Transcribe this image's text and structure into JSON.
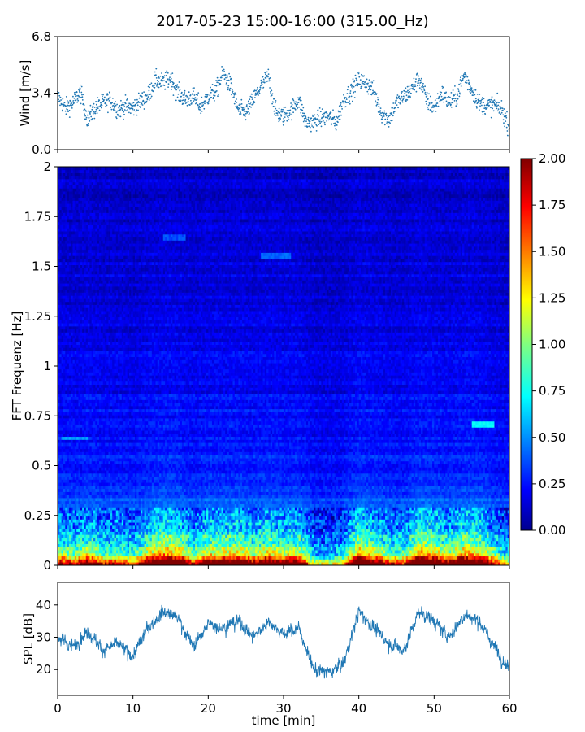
{
  "figure": {
    "title": "2017-05-23 15:00-16:00 (315.00_Hz)",
    "xlabel": "time [min]"
  },
  "chart_data": [
    {
      "type": "scatter",
      "panel": "wind",
      "ylabel": "Wind [m/s]",
      "xlim": [
        0,
        60
      ],
      "ylim": [
        0.0,
        6.8
      ],
      "yticks": [
        "0.0",
        "3.4",
        "6.8"
      ],
      "color": "#1f77b4",
      "trend": {
        "x": [
          0,
          1,
          2,
          3,
          4,
          5,
          6,
          7,
          8,
          9,
          10,
          11,
          12,
          13,
          14,
          15,
          16,
          17,
          18,
          19,
          20,
          21,
          22,
          23,
          24,
          25,
          26,
          27,
          28,
          29,
          30,
          31,
          32,
          33,
          34,
          35,
          36,
          37,
          38,
          39,
          40,
          41,
          42,
          43,
          44,
          45,
          46,
          47,
          48,
          49,
          50,
          51,
          52,
          53,
          54,
          55,
          56,
          57,
          58,
          59,
          60
        ],
        "y": [
          3.2,
          2.5,
          2.8,
          3.5,
          1.8,
          2.5,
          2.8,
          3.0,
          2.4,
          2.6,
          2.5,
          2.9,
          3.2,
          4.2,
          4.0,
          4.3,
          3.4,
          3.0,
          3.2,
          2.6,
          3.2,
          3.5,
          4.6,
          3.8,
          2.4,
          2.2,
          3.0,
          3.8,
          4.4,
          2.2,
          2.0,
          2.4,
          3.0,
          1.6,
          1.7,
          1.9,
          2.0,
          1.6,
          3.0,
          3.5,
          4.2,
          4.0,
          3.5,
          2.2,
          1.8,
          2.8,
          3.2,
          3.6,
          4.3,
          3.0,
          2.5,
          3.4,
          2.8,
          3.2,
          4.5,
          3.6,
          2.8,
          2.6,
          2.7,
          2.4,
          1.3
        ]
      },
      "spread": 0.55,
      "n_points": 1500
    },
    {
      "type": "heatmap",
      "panel": "spectrogram",
      "ylabel": "FFT Frequenz [Hz]",
      "xlim": [
        0,
        60
      ],
      "ylim": [
        0,
        2
      ],
      "yticks": [
        "0",
        "0.25",
        "0.5",
        "0.75",
        "1",
        "1.25",
        "1.5",
        "1.75",
        "2"
      ],
      "colormap": "jet",
      "colorbar": {
        "range": [
          0.0,
          2.0
        ],
        "ticks": [
          "0.00",
          "0.25",
          "0.50",
          "0.75",
          "1.00",
          "1.25",
          "1.50",
          "1.75",
          "2.00"
        ]
      },
      "n_time_bins": 240,
      "n_freq_bins": 130,
      "base_profile": [
        {
          "freq": 0.0,
          "value": 1.95
        },
        {
          "freq": 0.02,
          "value": 1.7
        },
        {
          "freq": 0.05,
          "value": 1.1
        },
        {
          "freq": 0.1,
          "value": 0.75
        },
        {
          "freq": 0.2,
          "value": 0.5
        },
        {
          "freq": 0.3,
          "value": 0.4
        },
        {
          "freq": 0.5,
          "value": 0.3
        },
        {
          "freq": 1.0,
          "value": 0.21
        },
        {
          "freq": 1.5,
          "value": 0.18
        },
        {
          "freq": 2.0,
          "value": 0.15
        }
      ],
      "highlights": [
        {
          "t0": 0.5,
          "t1": 4,
          "freq": 0.64,
          "value": 0.55
        },
        {
          "t0": 55,
          "t1": 58,
          "freq": 0.71,
          "value": 0.75
        },
        {
          "t0": 27,
          "t1": 31,
          "freq": 1.55,
          "value": 0.45
        },
        {
          "t0": 14,
          "t1": 17,
          "freq": 1.65,
          "value": 0.4
        }
      ]
    },
    {
      "type": "line",
      "panel": "spl",
      "ylabel": "SPL [dB]",
      "xlim": [
        0,
        60
      ],
      "ylim": [
        12,
        47
      ],
      "yticks": [
        "20",
        "30",
        "40"
      ],
      "xticks": [
        "0",
        "10",
        "20",
        "30",
        "40",
        "50",
        "60"
      ],
      "color": "#1f77b4",
      "envelope": {
        "x": [
          0,
          2,
          4,
          6,
          8,
          10,
          12,
          14,
          16,
          18,
          20,
          22,
          24,
          26,
          28,
          30,
          32,
          34,
          36,
          38,
          40,
          42,
          44,
          46,
          48,
          50,
          52,
          54,
          56,
          58,
          60
        ],
        "y": [
          30,
          27,
          32,
          26,
          28,
          24,
          33,
          38,
          36,
          27,
          34,
          33,
          35,
          30,
          35,
          31,
          33,
          20,
          19,
          22,
          38,
          33,
          28,
          26,
          38,
          35,
          30,
          37,
          35,
          27,
          20
        ]
      },
      "spread": 4
    }
  ]
}
